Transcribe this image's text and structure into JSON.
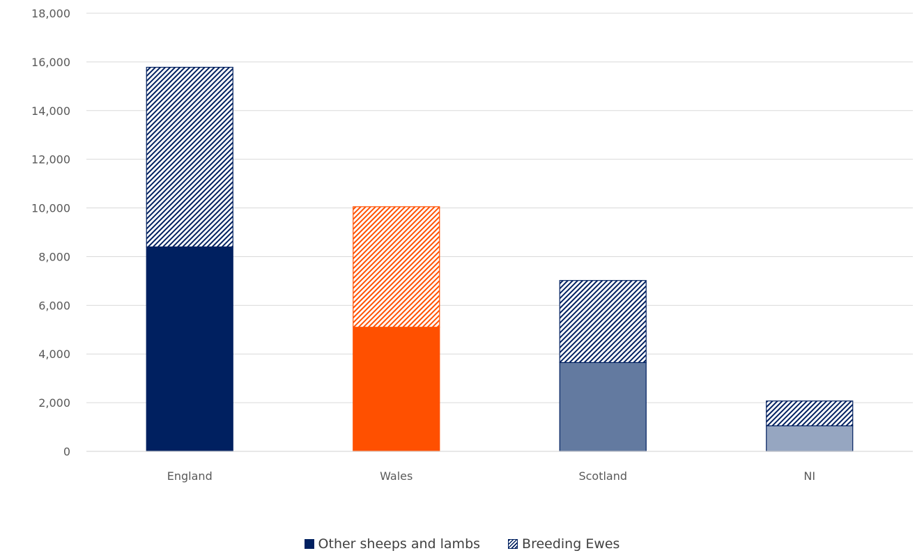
{
  "chart_data": {
    "type": "bar",
    "stacked": true,
    "categories": [
      "England",
      "Wales",
      "Scotland",
      "NI"
    ],
    "series": [
      {
        "name": "Other sheeps and lambs",
        "values": [
          8400,
          5100,
          3650,
          1050
        ],
        "pattern": "solid"
      },
      {
        "name": "Breeding Ewes",
        "values": [
          7380,
          4950,
          3370,
          1020
        ],
        "pattern": "hatched"
      }
    ],
    "bar_colors": [
      "#002060",
      "#FF5000",
      "#637AA0",
      "#96A6C1"
    ],
    "hatch_colors": [
      "#002060",
      "#FF5000",
      "#002060",
      "#002060"
    ],
    "ylim": [
      0,
      18000
    ],
    "yticks": [
      "0",
      "2,000",
      "4,000",
      "6,000",
      "8,000",
      "10,000",
      "12,000",
      "14,000",
      "16,000",
      "18,000"
    ],
    "ytick_values": [
      0,
      2000,
      4000,
      6000,
      8000,
      10000,
      12000,
      14000,
      16000,
      18000
    ],
    "grid": true,
    "legend_position": "bottom",
    "title": "",
    "xlabel": "",
    "ylabel": ""
  }
}
